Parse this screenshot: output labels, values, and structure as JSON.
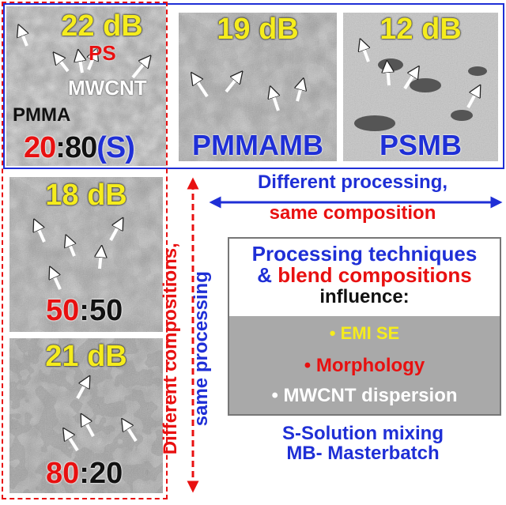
{
  "panels": {
    "s2080": {
      "db": "22 dB",
      "ps": "PS",
      "mwcnt": "MWCNT",
      "pmma": "PMMA",
      "ratio_a": "20",
      "colon": ":",
      "ratio_b": "80",
      "suffix": "(S)"
    },
    "pmmamb": {
      "db": "19 dB",
      "name": "PMMAMB"
    },
    "psmb": {
      "db": "12 dB",
      "name": "PSMB"
    },
    "r5050": {
      "db": "18 dB",
      "ratio_a": "50",
      "colon": ":",
      "ratio_b": "50"
    },
    "r8020": {
      "db": "21 dB",
      "ratio_a": "80",
      "colon": ":",
      "ratio_b": "20"
    }
  },
  "annotations": {
    "processing_line1": "Different processing,",
    "processing_line2": "same composition",
    "composition_line1": "Different compositions,",
    "composition_line2": "same processing"
  },
  "summary": {
    "title_line1": "Processing techniques",
    "title_amp": "& ",
    "title_line2": "blend compositions",
    "title_line3": "influence:",
    "bullets": [
      "• EMI SE",
      "• Morphology",
      "• MWCNT dispersion"
    ]
  },
  "legend": {
    "line1": "S-Solution mixing",
    "line2": "MB- Masterbatch"
  },
  "colors": {
    "blue": "#1f2fd6",
    "red": "#e81010",
    "yellow": "#f5ec1d",
    "summary_gray": "#a9a9a9"
  }
}
